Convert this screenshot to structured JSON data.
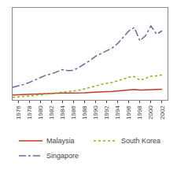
{
  "chart_data": {
    "type": "line",
    "x": [
      1975,
      1976,
      1977,
      1978,
      1979,
      1980,
      1981,
      1982,
      1983,
      1984,
      1985,
      1986,
      1987,
      1988,
      1989,
      1990,
      1991,
      1992,
      1993,
      1994,
      1995,
      1996,
      1997,
      1998,
      1999,
      2000,
      2001,
      2002
    ],
    "series": [
      {
        "name": "Malaysia",
        "color": "#c0392b",
        "line_style": "solid",
        "values": [
          1500,
          1580,
          1650,
          1720,
          1810,
          1900,
          1970,
          2000,
          2060,
          2120,
          2080,
          2060,
          2110,
          2180,
          2260,
          2400,
          2480,
          2540,
          2600,
          2720,
          2900,
          3050,
          3150,
          2980,
          3020,
          3200,
          3180,
          3250
        ]
      },
      {
        "name": "South Korea",
        "color": "#8db010",
        "line_style": "dotted",
        "values": [
          800,
          900,
          1000,
          1150,
          1350,
          1550,
          1750,
          1900,
          2100,
          2350,
          2450,
          2600,
          2950,
          3350,
          3800,
          4300,
          4700,
          5000,
          5300,
          5800,
          6400,
          6900,
          7100,
          6000,
          6500,
          7200,
          7300,
          7600
        ]
      },
      {
        "name": "Singapore",
        "color": "#7b5ea7",
        "line_style": "dashdot",
        "values": [
          3800,
          4200,
          4700,
          5300,
          6000,
          6800,
          7500,
          7900,
          8500,
          9200,
          8900,
          9000,
          9900,
          10900,
          12000,
          13300,
          14200,
          15000,
          15800,
          17200,
          19000,
          21000,
          22000,
          18000,
          19500,
          22500,
          20000,
          21000
        ]
      }
    ],
    "xlim": [
      1975,
      2003
    ],
    "xticks": [
      1976,
      1978,
      1980,
      1982,
      1984,
      1986,
      1988,
      1990,
      1992,
      1994,
      1996,
      1998,
      2000,
      2002
    ],
    "ylim": [
      0,
      28000
    ],
    "yticks": [],
    "grid": false,
    "tick_labels": "x",
    "legend": "bottom"
  }
}
